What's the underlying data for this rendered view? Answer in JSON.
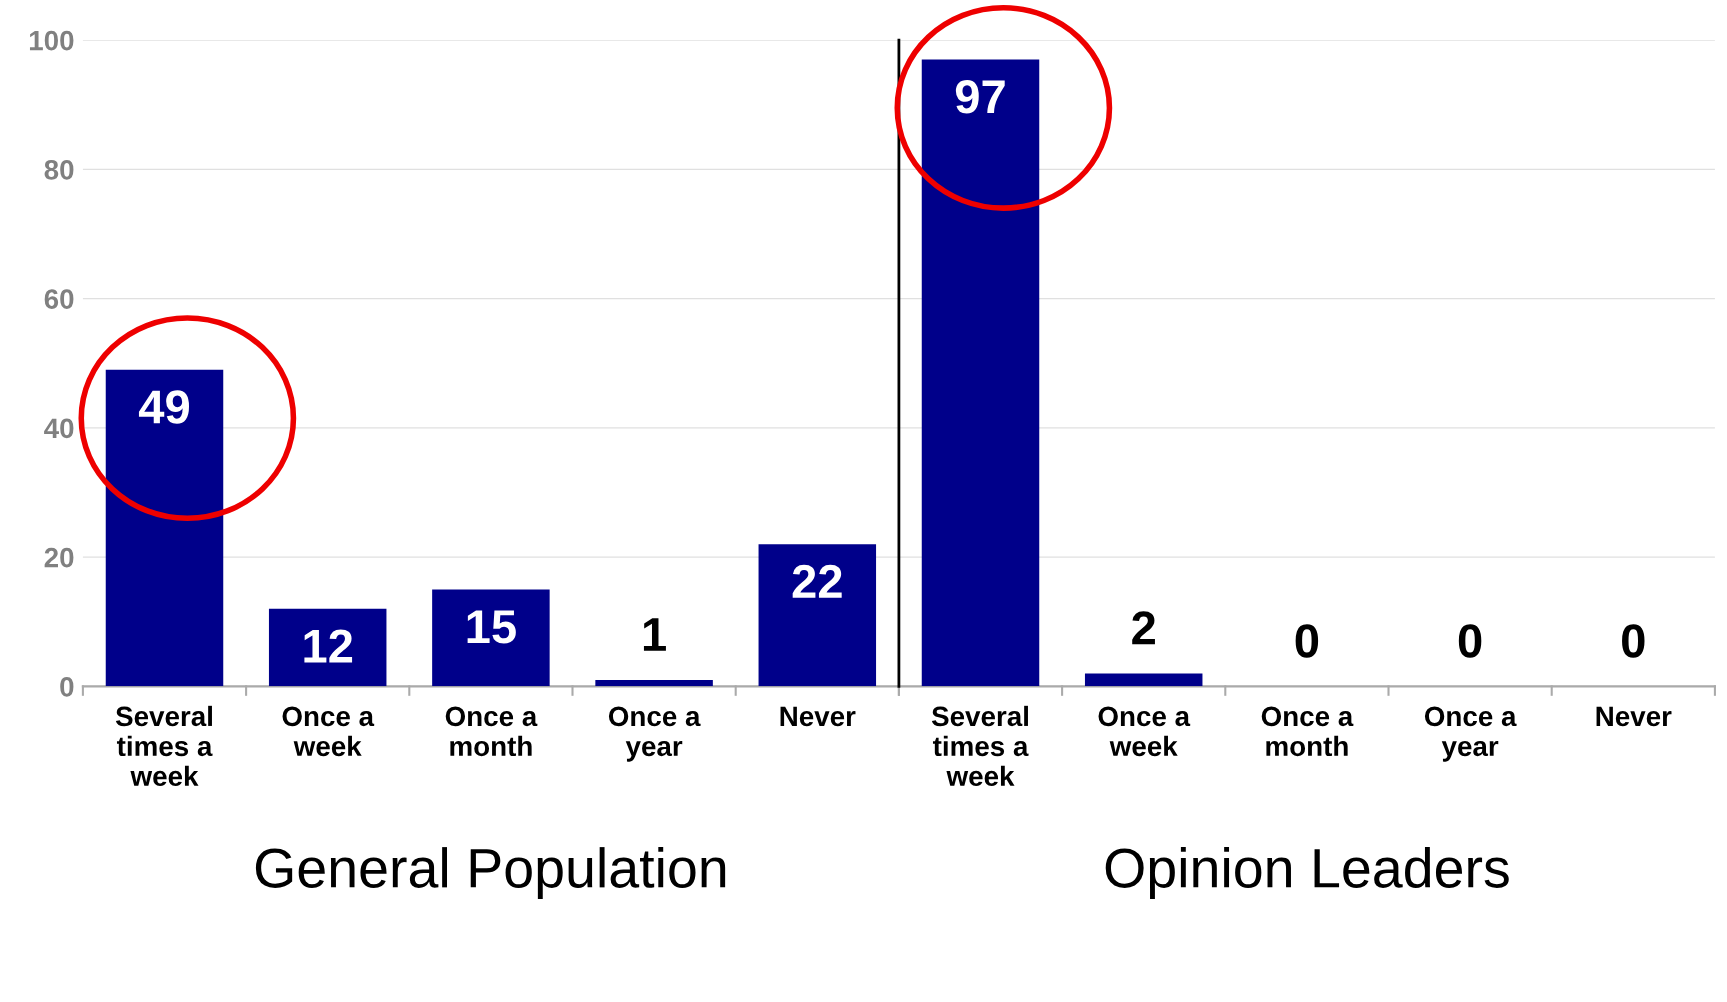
{
  "chart_data": [
    {
      "type": "bar",
      "xlabel": "General Population",
      "categories": [
        "Several times a week",
        "Once a week",
        "Once a month",
        "Once a year",
        "Never"
      ],
      "values": [
        49,
        12,
        15,
        1,
        22
      ],
      "color": "#00008a",
      "ylim": [
        0,
        100
      ],
      "yticks": [
        0,
        20,
        40,
        60,
        80,
        100
      ],
      "grid": "y",
      "data_labels": true
    },
    {
      "type": "bar",
      "xlabel": "Opinion Leaders",
      "categories": [
        "Several times a week",
        "Once a week",
        "Once a month",
        "Once a year",
        "Never"
      ],
      "values": [
        97,
        2,
        0,
        0,
        0
      ],
      "color": "#00008a",
      "ylim": [
        0,
        100
      ],
      "tick_labels": "x",
      "grid": "y",
      "data_labels": true
    }
  ]
}
